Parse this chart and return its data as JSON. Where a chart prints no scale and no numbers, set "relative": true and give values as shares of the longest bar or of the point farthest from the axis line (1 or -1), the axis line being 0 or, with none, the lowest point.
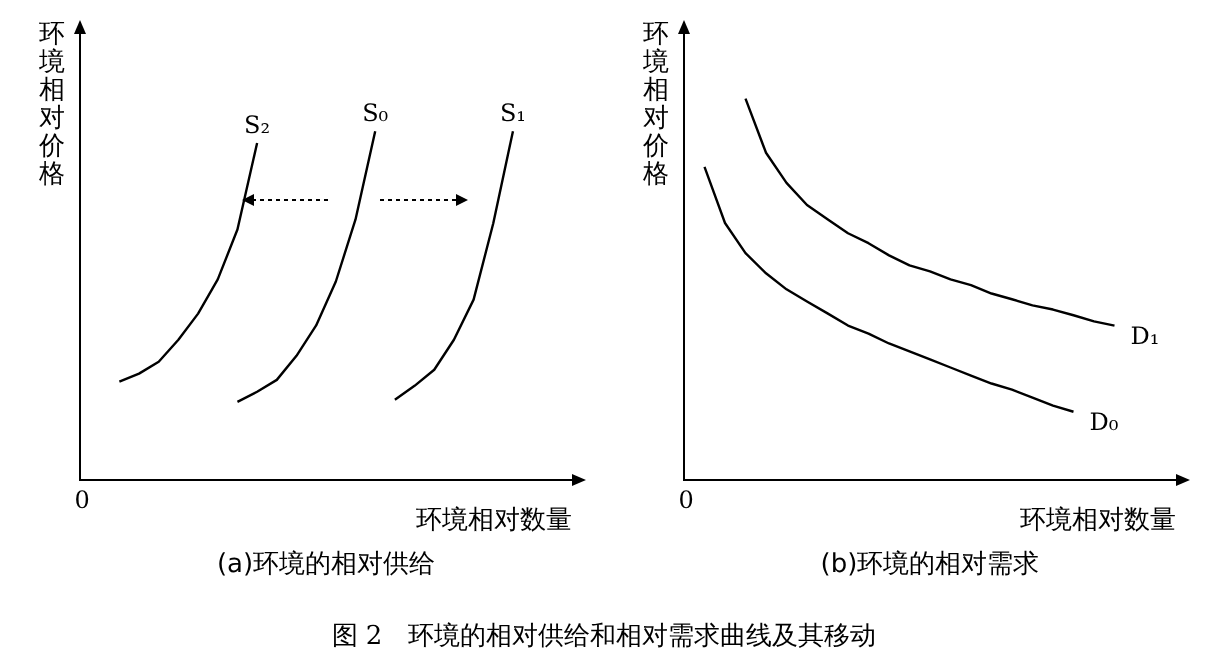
{
  "chart_data": [
    {
      "type": "line",
      "relative": true,
      "title": "(a)环境的相对供给",
      "xlabel": "环境相对数量",
      "ylabel": "环境相对价格",
      "grid": false,
      "legend": false,
      "marker": "none",
      "line_style": "solid",
      "annotations": [
        "0",
        "图 2　环境的相对供给和相对需求曲线及其移动"
      ],
      "categories": [
        null,
        null,
        null,
        null,
        null,
        null,
        null,
        null,
        null,
        null,
        null,
        null,
        null,
        null,
        null,
        null,
        null,
        null,
        null,
        null,
        null,
        null,
        null,
        null,
        null,
        null
      ],
      "series": [
        {
          "name": "S₂",
          "color": "#000000",
          "values": [
            null,
            null,
            0.282,
            0.305,
            0.339,
            0.402,
            0.477,
            0.575,
            0.718,
            0.966,
            null,
            null,
            null,
            null,
            null,
            null,
            null,
            null,
            null,
            null,
            null,
            null,
            null,
            null,
            null,
            null
          ]
        },
        {
          "name": "S₀",
          "color": "#000000",
          "values": [
            null,
            null,
            null,
            null,
            null,
            null,
            null,
            null,
            0.224,
            0.253,
            0.287,
            0.356,
            0.443,
            0.569,
            0.747,
            1,
            null,
            null,
            null,
            null,
            null,
            null,
            null,
            null,
            null,
            null
          ]
        },
        {
          "name": "S₁",
          "color": "#000000",
          "values": [
            null,
            null,
            null,
            null,
            null,
            null,
            null,
            null,
            null,
            null,
            null,
            null,
            null,
            null,
            null,
            null,
            0.23,
            0.27,
            0.316,
            0.402,
            0.517,
            0.736,
            1,
            null,
            null,
            null
          ]
        }
      ]
    },
    {
      "type": "line",
      "relative": true,
      "title": "(b)环境的相对需求",
      "xlabel": "环境相对数量",
      "ylabel": "环境相对价格",
      "grid": false,
      "legend": false,
      "marker": "none",
      "line_style": "solid",
      "annotations": [
        "0"
      ],
      "categories": [
        null,
        null,
        null,
        null,
        null,
        null,
        null,
        null,
        null,
        null,
        null,
        null,
        null,
        null,
        null,
        null,
        null,
        null,
        null,
        null,
        null,
        null,
        null,
        null,
        null
      ],
      "series": [
        {
          "name": "D₁",
          "color": "#000000",
          "values": [
            null,
            null,
            null,
            1,
            0.858,
            0.779,
            0.721,
            0.684,
            0.647,
            0.621,
            0.589,
            0.563,
            0.547,
            0.526,
            0.511,
            0.489,
            0.474,
            0.458,
            0.447,
            0.432,
            0.416,
            0.405,
            null,
            null,
            null
          ]
        },
        {
          "name": "D₀",
          "color": "#000000",
          "values": [
            null,
            0.821,
            0.674,
            0.595,
            0.542,
            0.5,
            0.468,
            0.437,
            0.405,
            0.384,
            0.358,
            0.337,
            0.316,
            0.295,
            0.274,
            0.253,
            0.237,
            0.216,
            0.195,
            0.179,
            null,
            null,
            null,
            null,
            null
          ]
        }
      ]
    }
  ]
}
